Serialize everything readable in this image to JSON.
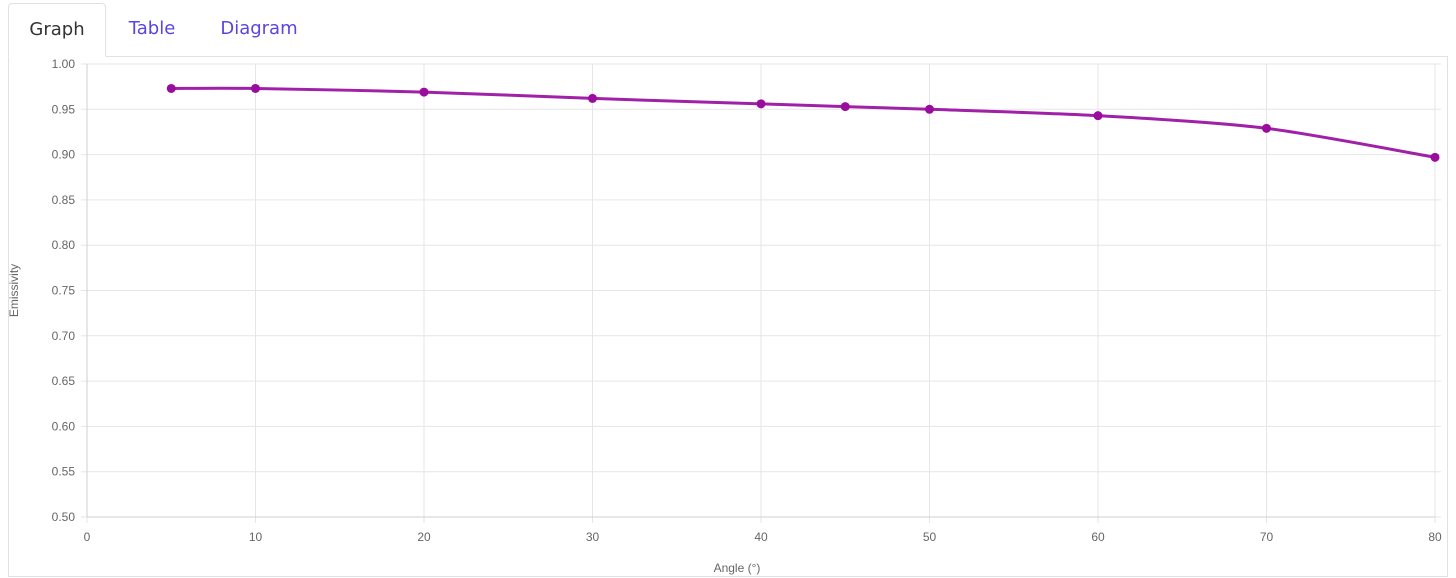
{
  "tabs": [
    {
      "label": "Graph",
      "active": true
    },
    {
      "label": "Table",
      "active": false
    },
    {
      "label": "Diagram",
      "active": false
    }
  ],
  "colors": {
    "series": "#a020a8",
    "point": "#9a0c9e",
    "grid": "#e6e6e6",
    "tab_link": "#5b45e0"
  },
  "chart_data": {
    "type": "line",
    "xlabel": "Angle (°)",
    "ylabel": "Emissivity",
    "xlim": [
      0,
      80
    ],
    "ylim": [
      0.5,
      1.0
    ],
    "x_ticks": [
      0,
      10,
      20,
      30,
      40,
      50,
      60,
      70,
      80
    ],
    "y_ticks": [
      "0.50",
      "0.55",
      "0.60",
      "0.65",
      "0.70",
      "0.75",
      "0.80",
      "0.85",
      "0.90",
      "0.95",
      "1.00"
    ],
    "grid": true,
    "legend": "none",
    "series": [
      {
        "x": [
          5,
          10,
          20,
          30,
          40,
          45,
          50,
          60,
          70,
          80
        ],
        "y": [
          0.973,
          0.973,
          0.969,
          0.962,
          0.956,
          0.953,
          0.95,
          0.943,
          0.929,
          0.897
        ]
      }
    ]
  }
}
